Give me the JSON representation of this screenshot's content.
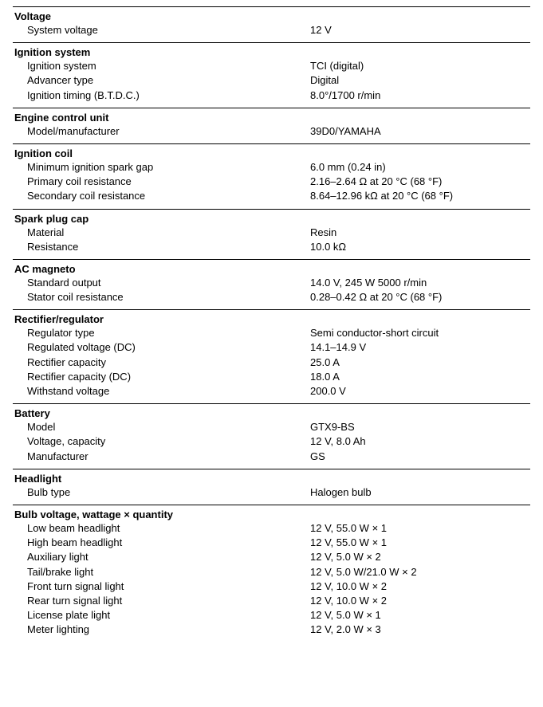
{
  "sections": [
    {
      "header": "Voltage",
      "rows": [
        {
          "label": "System voltage",
          "value": "12 V"
        }
      ]
    },
    {
      "header": "Ignition system",
      "rows": [
        {
          "label": "Ignition system",
          "value": "TCI (digital)"
        },
        {
          "label": "Advancer type",
          "value": "Digital"
        },
        {
          "label": "Ignition timing (B.T.D.C.)",
          "value": "8.0°/1700 r/min"
        }
      ]
    },
    {
      "header": "Engine control unit",
      "rows": [
        {
          "label": "Model/manufacturer",
          "value": "39D0/YAMAHA"
        }
      ]
    },
    {
      "header": "Ignition coil",
      "rows": [
        {
          "label": "Minimum ignition spark gap",
          "value": "6.0 mm (0.24 in)"
        },
        {
          "label": "Primary coil resistance",
          "value": "2.16–2.64 Ω at 20 °C (68 °F)"
        },
        {
          "label": "Secondary coil resistance",
          "value": "8.64–12.96 kΩ at 20 °C (68 °F)"
        }
      ]
    },
    {
      "header": "Spark plug cap",
      "rows": [
        {
          "label": "Material",
          "value": "Resin"
        },
        {
          "label": "Resistance",
          "value": "10.0 kΩ"
        }
      ]
    },
    {
      "header": "AC magneto",
      "rows": [
        {
          "label": "Standard output",
          "value": "14.0 V, 245 W 5000 r/min"
        },
        {
          "label": "Stator coil resistance",
          "value": "0.28–0.42 Ω at 20 °C (68 °F)"
        }
      ]
    },
    {
      "header": "Rectifier/regulator",
      "rows": [
        {
          "label": "Regulator type",
          "value": "Semi conductor-short circuit"
        },
        {
          "label": "Regulated voltage (DC)",
          "value": "14.1–14.9 V"
        },
        {
          "label": "Rectifier capacity",
          "value": "25.0 A"
        },
        {
          "label": "Rectifier capacity (DC)",
          "value": "18.0 A"
        },
        {
          "label": "Withstand voltage",
          "value": "200.0 V"
        }
      ]
    },
    {
      "header": "Battery",
      "rows": [
        {
          "label": "Model",
          "value": "GTX9-BS"
        },
        {
          "label": "Voltage, capacity",
          "value": "12 V, 8.0 Ah"
        },
        {
          "label": "Manufacturer",
          "value": "GS"
        }
      ]
    },
    {
      "header": "Headlight",
      "rows": [
        {
          "label": "Bulb type",
          "value": "Halogen bulb"
        }
      ]
    },
    {
      "header": "Bulb voltage, wattage × quantity",
      "rows": [
        {
          "label": "Low beam headlight",
          "value": "12 V, 55.0 W × 1"
        },
        {
          "label": "High beam headlight",
          "value": "12 V, 55.0 W × 1"
        },
        {
          "label": "Auxiliary light",
          "value": "12 V, 5.0 W × 2"
        },
        {
          "label": "Tail/brake light",
          "value": "12 V, 5.0 W/21.0 W × 2"
        },
        {
          "label": "Front turn signal light",
          "value": "12 V, 10.0 W × 2"
        },
        {
          "label": "Rear turn signal light",
          "value": "12 V, 10.0 W × 2"
        },
        {
          "label": "License plate light",
          "value": "12 V, 5.0 W × 1"
        },
        {
          "label": "Meter lighting",
          "value": "12 V, 2.0 W × 3"
        }
      ]
    }
  ]
}
